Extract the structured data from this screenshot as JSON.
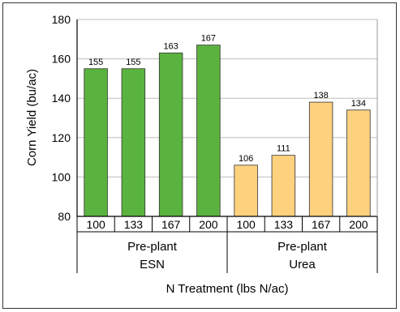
{
  "chart_data": {
    "type": "bar",
    "title": "",
    "xlabel": "N Treatment (lbs N/ac)",
    "ylabel": "Corn Yield (bu/ac)",
    "ylim": [
      80,
      180
    ],
    "yticks": [
      80,
      100,
      120,
      140,
      160,
      180
    ],
    "grid": true,
    "legend": "none",
    "groups": [
      {
        "name_line1": "Pre-plant",
        "name_line2": "ESN",
        "color": "#5bb33f",
        "categories": [
          "100",
          "133",
          "167",
          "200"
        ],
        "values": [
          155,
          155,
          163,
          167
        ]
      },
      {
        "name_line1": "Pre-plant",
        "name_line2": "Urea",
        "color": "#fdd17e",
        "categories": [
          "100",
          "133",
          "167",
          "200"
        ],
        "values": [
          106,
          111,
          138,
          134
        ]
      }
    ]
  }
}
